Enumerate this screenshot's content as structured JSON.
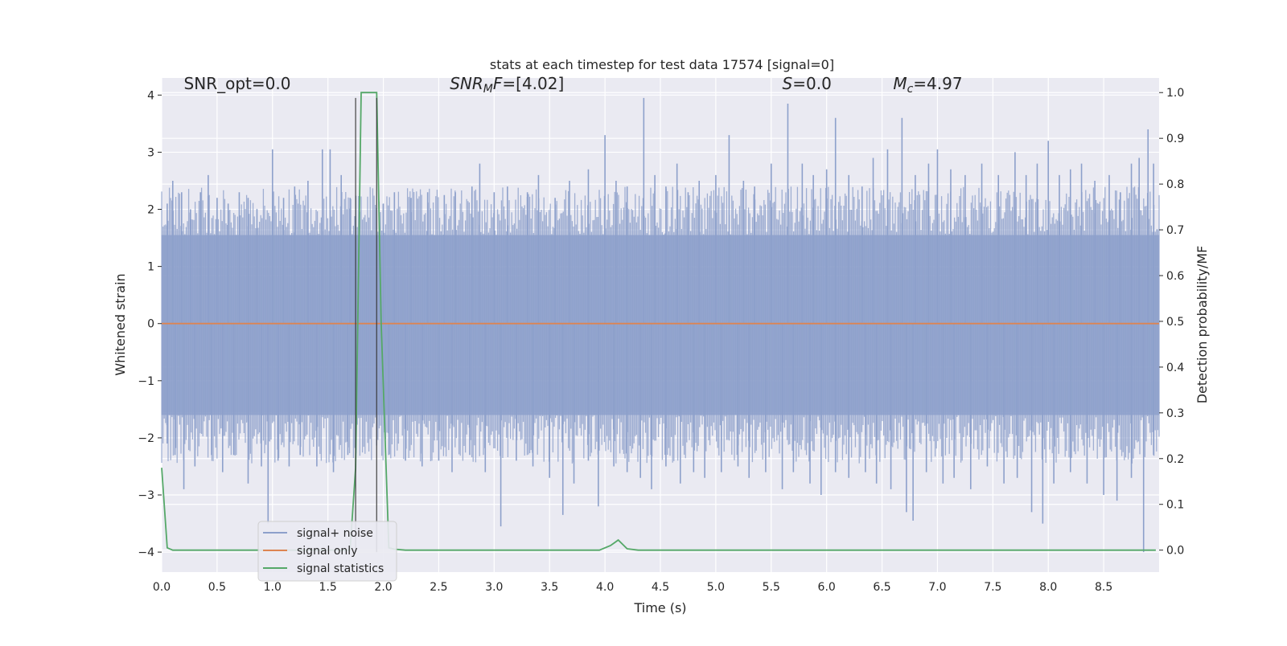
{
  "chart_data": {
    "type": "line",
    "title": "stats at each timestep for test data 17574 [signal=0]",
    "xlabel": "Time (s)",
    "ylabel": "Whitened strain",
    "y2label": "Detection probability/MF",
    "xlim": [
      0.0,
      9.0
    ],
    "ylim": [
      -4.35,
      4.3
    ],
    "y2lim": [
      -0.048,
      1.032
    ],
    "xticks": [
      0.0,
      0.5,
      1.0,
      1.5,
      2.0,
      2.5,
      3.0,
      3.5,
      4.0,
      4.5,
      5.0,
      5.5,
      6.0,
      6.5,
      7.0,
      7.5,
      8.0,
      8.5
    ],
    "xtick_labels": [
      "0.0",
      "0.5",
      "1.0",
      "1.5",
      "2.0",
      "2.5",
      "3.0",
      "3.5",
      "4.0",
      "4.5",
      "5.0",
      "5.5",
      "6.0",
      "6.5",
      "7.0",
      "7.5",
      "8.0",
      "8.5"
    ],
    "yticks": [
      -4,
      -3,
      -2,
      -1,
      0,
      1,
      2,
      3,
      4
    ],
    "ytick_labels": [
      "−4",
      "−3",
      "−2",
      "−1",
      "0",
      "1",
      "2",
      "3",
      "4"
    ],
    "y2ticks": [
      0.0,
      0.1,
      0.2,
      0.3,
      0.4,
      0.5,
      0.6,
      0.7,
      0.8,
      0.9,
      1.0
    ],
    "y2tick_labels": [
      "0.0",
      "0.1",
      "0.2",
      "0.3",
      "0.4",
      "0.5",
      "0.6",
      "0.7",
      "0.8",
      "0.9",
      "1.0"
    ],
    "grid": true,
    "annotations": [
      {
        "id": "snr-opt",
        "parts": [
          {
            "t": "SNR_opt=0.0"
          }
        ],
        "x": 0.2,
        "y": 4.1
      },
      {
        "id": "snr-mf",
        "parts": [
          {
            "t": "SNR",
            "i": true
          },
          {
            "t": "M",
            "i": true,
            "sub": true
          },
          {
            "t": "F",
            "i": true
          },
          {
            "t": "=[4.02]"
          }
        ],
        "x": 2.6,
        "y": 4.1
      },
      {
        "id": "s-value",
        "parts": [
          {
            "t": "S",
            "i": true
          },
          {
            "t": "=0.0"
          }
        ],
        "x": 5.6,
        "y": 4.1
      },
      {
        "id": "mc-value",
        "parts": [
          {
            "t": "M",
            "i": true
          },
          {
            "t": "c",
            "i": true,
            "sub": true
          },
          {
            "t": "=4.97"
          }
        ],
        "x": 6.6,
        "y": 4.1
      }
    ],
    "vertical_lines": [
      1.75,
      1.94
    ],
    "vertical_line_top": 3.95,
    "vertical_line_bottom": -4.0,
    "legend": {
      "location": "lower-left",
      "entries": [
        {
          "label": "signal+ noise",
          "color": "#8da0cb"
        },
        {
          "label": "signal only",
          "color": "#dd8452"
        },
        {
          "label": "signal statistics",
          "color": "#55a868"
        }
      ]
    },
    "series": [
      {
        "name": "signal+ noise",
        "axis": "left",
        "color": "#8da0cb",
        "render": "noise",
        "x_range": [
          0.0,
          9.0
        ],
        "band_upper": 1.55,
        "band_lower": -1.6,
        "spikes_up": [
          [
            0.05,
            2.1
          ],
          [
            0.1,
            2.5
          ],
          [
            0.18,
            2.3
          ],
          [
            0.26,
            2.0
          ],
          [
            0.35,
            2.3
          ],
          [
            0.42,
            2.6
          ],
          [
            0.5,
            2.2
          ],
          [
            0.6,
            2.1
          ],
          [
            0.7,
            2.3
          ],
          [
            0.78,
            2.2
          ],
          [
            0.86,
            2.0
          ],
          [
            1.0,
            3.05
          ],
          [
            1.1,
            2.2
          ],
          [
            1.2,
            2.4
          ],
          [
            1.32,
            2.5
          ],
          [
            1.45,
            3.05
          ],
          [
            1.52,
            3.05
          ],
          [
            1.62,
            2.6
          ],
          [
            1.7,
            2.2
          ],
          [
            2.0,
            2.1
          ],
          [
            2.1,
            2.3
          ],
          [
            2.25,
            2.2
          ],
          [
            2.4,
            2.3
          ],
          [
            2.55,
            2.25
          ],
          [
            2.65,
            2.3
          ],
          [
            2.8,
            2.4
          ],
          [
            2.87,
            2.8
          ],
          [
            3.0,
            2.3
          ],
          [
            3.12,
            2.4
          ],
          [
            3.3,
            2.3
          ],
          [
            3.4,
            2.6
          ],
          [
            3.55,
            2.2
          ],
          [
            3.68,
            2.5
          ],
          [
            3.85,
            2.7
          ],
          [
            4.0,
            3.3
          ],
          [
            4.1,
            2.5
          ],
          [
            4.2,
            2.4
          ],
          [
            4.35,
            3.95
          ],
          [
            4.45,
            2.6
          ],
          [
            4.55,
            2.4
          ],
          [
            4.65,
            2.8
          ],
          [
            4.75,
            2.3
          ],
          [
            4.85,
            2.5
          ],
          [
            5.0,
            2.6
          ],
          [
            5.12,
            3.3
          ],
          [
            5.25,
            2.5
          ],
          [
            5.35,
            2.4
          ],
          [
            5.5,
            2.8
          ],
          [
            5.65,
            3.85
          ],
          [
            5.78,
            2.8
          ],
          [
            5.88,
            2.6
          ],
          [
            6.0,
            2.7
          ],
          [
            6.08,
            3.6
          ],
          [
            6.2,
            2.6
          ],
          [
            6.32,
            2.4
          ],
          [
            6.42,
            2.9
          ],
          [
            6.55,
            3.05
          ],
          [
            6.68,
            3.6
          ],
          [
            6.8,
            2.6
          ],
          [
            6.92,
            2.8
          ],
          [
            7.0,
            3.05
          ],
          [
            7.12,
            2.7
          ],
          [
            7.25,
            2.6
          ],
          [
            7.4,
            2.8
          ],
          [
            7.55,
            2.6
          ],
          [
            7.7,
            3.0
          ],
          [
            7.8,
            2.6
          ],
          [
            7.9,
            2.8
          ],
          [
            8.0,
            3.2
          ],
          [
            8.1,
            2.6
          ],
          [
            8.2,
            2.7
          ],
          [
            8.3,
            2.8
          ],
          [
            8.42,
            2.5
          ],
          [
            8.55,
            2.6
          ],
          [
            8.65,
            2.3
          ],
          [
            8.75,
            2.8
          ],
          [
            8.82,
            2.9
          ],
          [
            8.9,
            3.4
          ],
          [
            8.95,
            2.8
          ]
        ],
        "spikes_down": [
          [
            0.05,
            -2.1
          ],
          [
            0.12,
            -2.3
          ],
          [
            0.2,
            -2.9
          ],
          [
            0.3,
            -2.5
          ],
          [
            0.45,
            -2.3
          ],
          [
            0.55,
            -2.6
          ],
          [
            0.65,
            -2.3
          ],
          [
            0.78,
            -2.8
          ],
          [
            0.9,
            -2.5
          ],
          [
            0.96,
            -3.5
          ],
          [
            1.05,
            -2.4
          ],
          [
            1.15,
            -2.5
          ],
          [
            1.25,
            -2.3
          ],
          [
            1.4,
            -2.5
          ],
          [
            1.55,
            -2.6
          ],
          [
            1.68,
            -2.3
          ],
          [
            2.05,
            -2.3
          ],
          [
            2.2,
            -2.4
          ],
          [
            2.35,
            -2.5
          ],
          [
            2.5,
            -2.4
          ],
          [
            2.62,
            -2.6
          ],
          [
            2.78,
            -2.3
          ],
          [
            2.92,
            -2.6
          ],
          [
            3.06,
            -3.55
          ],
          [
            3.2,
            -2.4
          ],
          [
            3.35,
            -2.5
          ],
          [
            3.5,
            -2.7
          ],
          [
            3.62,
            -3.35
          ],
          [
            3.72,
            -2.8
          ],
          [
            3.85,
            -2.4
          ],
          [
            3.94,
            -3.2
          ],
          [
            4.08,
            -2.5
          ],
          [
            4.2,
            -2.6
          ],
          [
            4.32,
            -2.7
          ],
          [
            4.42,
            -2.9
          ],
          [
            4.55,
            -2.5
          ],
          [
            4.68,
            -2.8
          ],
          [
            4.8,
            -2.6
          ],
          [
            4.9,
            -2.7
          ],
          [
            5.05,
            -2.6
          ],
          [
            5.2,
            -2.5
          ],
          [
            5.3,
            -2.7
          ],
          [
            5.45,
            -2.6
          ],
          [
            5.6,
            -2.9
          ],
          [
            5.7,
            -2.6
          ],
          [
            5.85,
            -2.8
          ],
          [
            5.95,
            -3.0
          ],
          [
            6.08,
            -2.6
          ],
          [
            6.2,
            -2.7
          ],
          [
            6.35,
            -2.6
          ],
          [
            6.45,
            -2.8
          ],
          [
            6.58,
            -2.9
          ],
          [
            6.72,
            -3.3
          ],
          [
            6.78,
            -3.45
          ],
          [
            6.9,
            -2.6
          ],
          [
            7.05,
            -2.8
          ],
          [
            7.15,
            -2.7
          ],
          [
            7.3,
            -2.9
          ],
          [
            7.45,
            -2.5
          ],
          [
            7.6,
            -2.8
          ],
          [
            7.72,
            -2.7
          ],
          [
            7.85,
            -3.3
          ],
          [
            7.95,
            -3.5
          ],
          [
            8.05,
            -2.8
          ],
          [
            8.2,
            -2.6
          ],
          [
            8.35,
            -2.8
          ],
          [
            8.5,
            -3.0
          ],
          [
            8.62,
            -3.1
          ],
          [
            8.75,
            -2.7
          ],
          [
            8.86,
            -4.0
          ],
          [
            8.95,
            -2.3
          ]
        ]
      },
      {
        "name": "signal only",
        "axis": "left",
        "color": "#dd8452",
        "x": [
          0.0,
          9.0
        ],
        "y": [
          0.0,
          0.0
        ]
      },
      {
        "name": "signal statistics",
        "axis": "right",
        "color": "#55a868",
        "x": [
          0.0,
          0.05,
          0.1,
          0.15,
          1.6,
          1.7,
          1.75,
          1.8,
          1.85,
          1.9,
          1.94,
          1.98,
          2.05,
          2.1,
          2.2,
          3.95,
          4.05,
          4.12,
          4.2,
          4.3,
          8.97
        ],
        "y": [
          0.18,
          0.005,
          0.0,
          0.0,
          0.0,
          0.0,
          0.18,
          1.0,
          1.0,
          1.0,
          1.0,
          0.5,
          0.005,
          0.002,
          0.0,
          0.0,
          0.01,
          0.022,
          0.003,
          0.0,
          0.0
        ]
      }
    ]
  }
}
